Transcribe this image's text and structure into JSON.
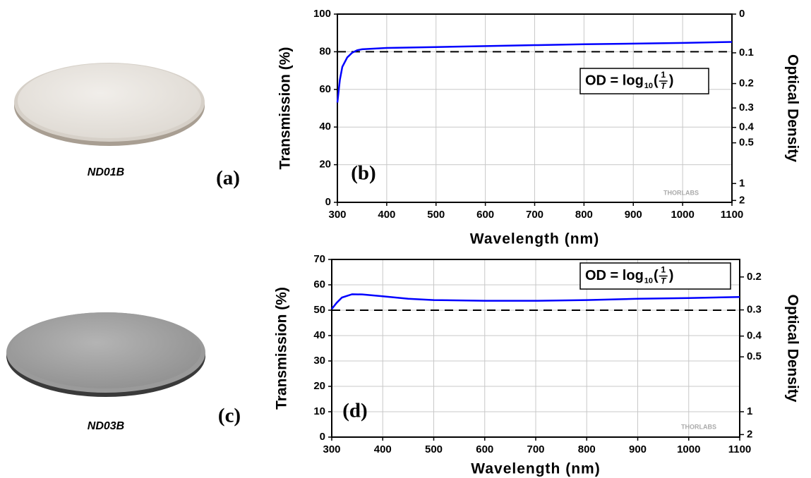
{
  "panels": [
    {
      "image_label": "ND01B",
      "panel_label": "(a)"
    },
    {
      "image_label": "ND03B",
      "panel_label": "(c)"
    }
  ],
  "chart_data": [
    {
      "type": "line",
      "panel_label": "(b)",
      "xlabel": "Wavelength (nm)",
      "ylabel": "Transmission (%)",
      "y2label": "Optical Density",
      "xlim": [
        300,
        1100
      ],
      "xticks": [
        300,
        400,
        500,
        600,
        700,
        800,
        900,
        1000,
        1100
      ],
      "ylim": [
        0,
        100
      ],
      "yticks": [
        0,
        20,
        40,
        60,
        80,
        100
      ],
      "y2scale": "optical-density",
      "y2ticks": [
        0,
        0.1,
        0.2,
        0.3,
        0.4,
        0.5,
        1,
        2
      ],
      "grid": true,
      "series": [
        {
          "color": "#0000ff",
          "x": [
            300,
            305,
            310,
            320,
            330,
            340,
            350,
            400,
            500,
            600,
            700,
            800,
            900,
            1000,
            1100
          ],
          "values": [
            53,
            65,
            72,
            77,
            79.5,
            80.8,
            81.3,
            82,
            82.5,
            83,
            83.5,
            84,
            84.3,
            84.7,
            85.2
          ]
        }
      ],
      "reference_line": {
        "value": 80,
        "color": "#000000"
      },
      "formula": {
        "main": "OD = log",
        "base": "10",
        "open": "(",
        "numerator": "1",
        "denominator": "T",
        "close": ")"
      },
      "watermark": "THORLABS"
    },
    {
      "type": "line",
      "panel_label": "(d)",
      "xlabel": "Wavelength (nm)",
      "ylabel": "Transmission (%)",
      "y2label": "Optical Density",
      "xlim": [
        300,
        1100
      ],
      "xticks": [
        300,
        400,
        500,
        600,
        700,
        800,
        900,
        1000,
        1100
      ],
      "ylim": [
        0,
        70
      ],
      "yticks": [
        0,
        10,
        20,
        30,
        40,
        50,
        60,
        70
      ],
      "y2scale": "optical-density",
      "y2ticks": [
        0.2,
        0.3,
        0.4,
        0.5,
        1,
        2
      ],
      "grid": true,
      "series": [
        {
          "color": "#0000ff",
          "x": [
            300,
            310,
            320,
            340,
            360,
            400,
            450,
            500,
            600,
            700,
            800,
            900,
            1000,
            1100
          ],
          "values": [
            50.5,
            53,
            55,
            56.3,
            56.2,
            55.5,
            54.5,
            54,
            53.7,
            53.7,
            54,
            54.5,
            54.8,
            55.2
          ]
        }
      ],
      "reference_line": {
        "value": 50,
        "color": "#000000"
      },
      "formula": {
        "main": "OD = log",
        "base": "10",
        "open": "(",
        "numerator": "1",
        "denominator": "T",
        "close": ")"
      },
      "watermark": "THORLABS"
    }
  ]
}
